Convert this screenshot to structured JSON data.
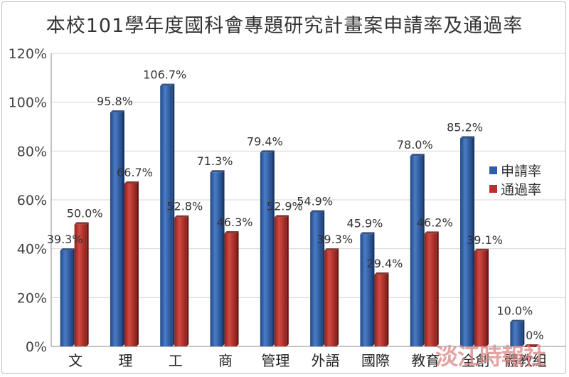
{
  "title": "本校101學年度國科會專題研究計畫案申請率及通過率",
  "watermark": "淡江時報社",
  "colors": {
    "apply": "#2f5da8",
    "pass": "#b8312b"
  },
  "chart_data": {
    "type": "bar",
    "title": "本校101學年度國科會專題研究計畫案申請率及通過率",
    "categories": [
      "文",
      "理",
      "工",
      "商",
      "管理",
      "外語",
      "國際",
      "教育",
      "全創",
      "體教組"
    ],
    "series": [
      {
        "name": "申請率",
        "values": [
          39.3,
          95.8,
          106.7,
          71.3,
          79.4,
          54.9,
          45.9,
          78.0,
          85.2,
          10.0
        ],
        "labels": [
          "39.3%",
          "95.8%",
          "106.7%",
          "71.3%",
          "79.4%",
          "54.9%",
          "45.9%",
          "78.0%",
          "85.2%",
          "10.0%"
        ]
      },
      {
        "name": "通過率",
        "values": [
          50.0,
          66.7,
          52.8,
          46.3,
          52.9,
          39.3,
          29.4,
          46.2,
          39.1,
          0
        ],
        "labels": [
          "50.0%",
          "66.7%",
          "52.8%",
          "46.3%",
          "52.9%",
          "39.3%",
          "29.4%",
          "46.2%",
          "39.1%",
          "0%"
        ]
      }
    ],
    "ylim": [
      0,
      120
    ],
    "yticks": [
      "0%",
      "20%",
      "40%",
      "60%",
      "80%",
      "100%",
      "120%"
    ],
    "grid": true,
    "legend_position": "right"
  }
}
